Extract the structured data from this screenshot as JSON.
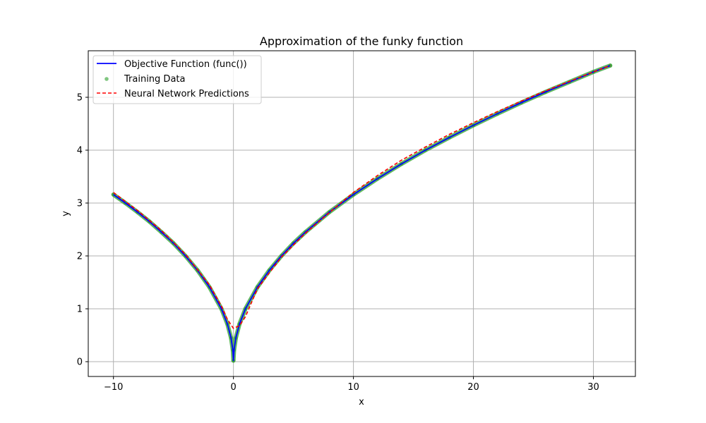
{
  "chart_data": {
    "type": "line",
    "title": "Approximation of the funky function",
    "xlabel": "x",
    "ylabel": "y",
    "xlim": [
      -12.1,
      33.5
    ],
    "ylim": [
      -0.28,
      5.88
    ],
    "x_ticks": [
      -10,
      0,
      10,
      20,
      30
    ],
    "x_tick_labels": [
      "−10",
      "0",
      "10",
      "20",
      "30"
    ],
    "y_ticks": [
      0,
      1,
      2,
      3,
      4,
      5
    ],
    "y_tick_labels": [
      "0",
      "1",
      "2",
      "3",
      "4",
      "5"
    ],
    "grid": true,
    "legend_position": "top-left",
    "legend": [
      {
        "label": "Objective Function (func())",
        "style": "solid-line",
        "color": "#0000ff"
      },
      {
        "label": "Training Data",
        "style": "scatter",
        "color": "#2ca02c"
      },
      {
        "label": "Neural Network Predictions",
        "style": "dashed-line",
        "color": "#ff0000"
      }
    ],
    "series": [
      {
        "name": "Objective Function (func())",
        "style": "solid",
        "color": "#0000ff",
        "x": [
          -10,
          -9,
          -8,
          -7,
          -6,
          -5,
          -4,
          -3,
          -2,
          -1,
          -0.5,
          -0.2,
          -0.05,
          0,
          0.05,
          0.2,
          0.5,
          1,
          2,
          3,
          4,
          5,
          6,
          8,
          10,
          12,
          14,
          16,
          18,
          20,
          22,
          24,
          26,
          28,
          30,
          31.4
        ],
        "y": [
          3.16,
          3.0,
          2.83,
          2.65,
          2.45,
          2.24,
          2.0,
          1.73,
          1.41,
          1.0,
          0.71,
          0.45,
          0.22,
          0.02,
          0.22,
          0.45,
          0.71,
          1.0,
          1.41,
          1.73,
          2.0,
          2.24,
          2.45,
          2.83,
          3.16,
          3.46,
          3.74,
          4.0,
          4.24,
          4.47,
          4.69,
          4.9,
          5.1,
          5.29,
          5.48,
          5.6
        ]
      },
      {
        "name": "Training Data",
        "style": "scatter",
        "color": "#2ca02c",
        "x": [
          -10,
          -9,
          -8,
          -7,
          -6,
          -5,
          -4,
          -3,
          -2,
          -1,
          -0.5,
          -0.2,
          -0.05,
          0,
          0.05,
          0.2,
          0.5,
          1,
          2,
          3,
          4,
          5,
          6,
          8,
          10,
          12,
          14,
          16,
          18,
          20,
          22,
          24,
          26,
          28,
          30,
          31.4
        ],
        "y": [
          3.16,
          3.0,
          2.83,
          2.65,
          2.45,
          2.24,
          2.0,
          1.73,
          1.41,
          1.0,
          0.71,
          0.45,
          0.22,
          0.02,
          0.22,
          0.45,
          0.71,
          1.0,
          1.41,
          1.73,
          2.0,
          2.24,
          2.45,
          2.83,
          3.16,
          3.46,
          3.74,
          4.0,
          4.24,
          4.47,
          4.69,
          4.9,
          5.1,
          5.29,
          5.48,
          5.6
        ]
      },
      {
        "name": "Neural Network Predictions",
        "style": "dashed",
        "color": "#ff0000",
        "x": [
          -10,
          -8,
          -6,
          -4,
          -2,
          -1,
          -0.5,
          0,
          0.5,
          1,
          2,
          4,
          6,
          8,
          10,
          12,
          14,
          16,
          18,
          20,
          22,
          24,
          26,
          28,
          30,
          31.4
        ],
        "y": [
          3.2,
          2.86,
          2.48,
          2.03,
          1.45,
          1.05,
          0.8,
          0.63,
          0.68,
          0.85,
          1.38,
          1.98,
          2.43,
          2.82,
          3.2,
          3.52,
          3.81,
          4.06,
          4.3,
          4.52,
          4.73,
          4.93,
          5.12,
          5.3,
          5.48,
          5.6
        ]
      }
    ]
  }
}
